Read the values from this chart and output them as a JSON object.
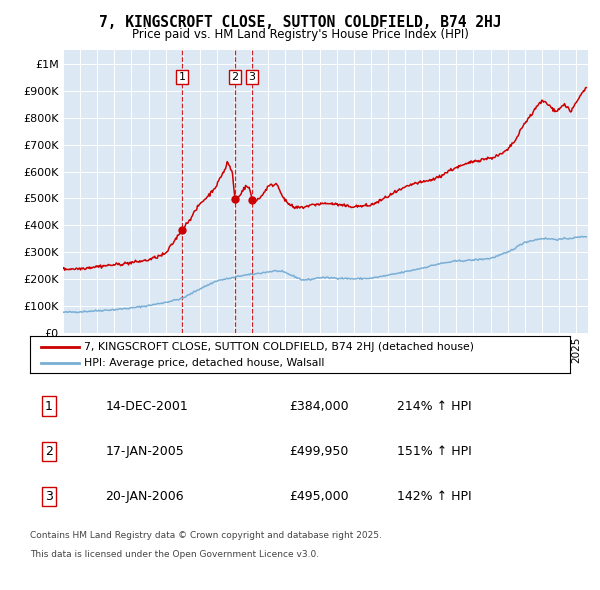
{
  "title": "7, KINGSCROFT CLOSE, SUTTON COLDFIELD, B74 2HJ",
  "subtitle": "Price paid vs. HM Land Registry's House Price Index (HPI)",
  "legend_house": "7, KINGSCROFT CLOSE, SUTTON COLDFIELD, B74 2HJ (detached house)",
  "legend_hpi": "HPI: Average price, detached house, Walsall",
  "transactions": [
    {
      "num": 1,
      "date": "14-DEC-2001",
      "price": 384000,
      "hpi_pct": "214% ↑ HPI"
    },
    {
      "num": 2,
      "date": "17-JAN-2005",
      "price": 499950,
      "hpi_pct": "151% ↑ HPI"
    },
    {
      "num": 3,
      "date": "20-JAN-2006",
      "price": 495000,
      "hpi_pct": "142% ↑ HPI"
    }
  ],
  "transaction_dates_decimal": [
    2001.96,
    2005.05,
    2006.05
  ],
  "footnote_line1": "Contains HM Land Registry data © Crown copyright and database right 2025.",
  "footnote_line2": "This data is licensed under the Open Government Licence v3.0.",
  "background_color": "#dce9f5",
  "line_color_house": "#cc0000",
  "line_color_hpi": "#7aaed4",
  "dashed_line_color": "#cc0000",
  "ylim": [
    0,
    1050000
  ],
  "xlim_start": 1995.0,
  "xlim_end": 2025.7
}
